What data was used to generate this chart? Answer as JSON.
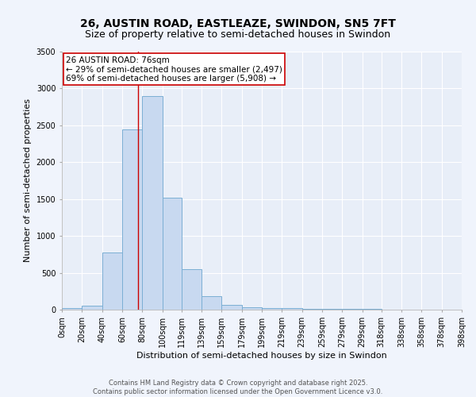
{
  "title": "26, AUSTIN ROAD, EASTLEAZE, SWINDON, SN5 7FT",
  "subtitle": "Size of property relative to semi-detached houses in Swindon",
  "xlabel": "Distribution of semi-detached houses by size in Swindon",
  "ylabel": "Number of semi-detached properties",
  "bar_color": "#c8d9f0",
  "bar_edge_color": "#7bafd4",
  "background_color": "#e8eef8",
  "grid_color": "#ffffff",
  "fig_background_color": "#f0f4fc",
  "bin_edges": [
    0,
    20,
    40,
    60,
    80,
    100,
    119,
    139,
    159,
    179,
    199,
    219,
    239,
    259,
    279,
    299,
    318,
    338,
    358,
    378,
    398
  ],
  "bin_labels": [
    "0sqm",
    "20sqm",
    "40sqm",
    "60sqm",
    "80sqm",
    "100sqm",
    "119sqm",
    "139sqm",
    "159sqm",
    "179sqm",
    "199sqm",
    "219sqm",
    "239sqm",
    "259sqm",
    "279sqm",
    "299sqm",
    "318sqm",
    "338sqm",
    "358sqm",
    "378sqm",
    "398sqm"
  ],
  "bar_heights": [
    20,
    50,
    780,
    2450,
    2900,
    1520,
    550,
    185,
    70,
    35,
    25,
    20,
    15,
    12,
    10,
    8,
    4,
    2,
    1,
    1
  ],
  "ylim": [
    0,
    3500
  ],
  "yticks": [
    0,
    500,
    1000,
    1500,
    2000,
    2500,
    3000,
    3500
  ],
  "property_size": 76,
  "property_line_color": "#cc0000",
  "annotation_text": "26 AUSTIN ROAD: 76sqm\n← 29% of semi-detached houses are smaller (2,497)\n69% of semi-detached houses are larger (5,908) →",
  "annotation_box_color": "#ffffff",
  "annotation_border_color": "#cc0000",
  "footer_line1": "Contains HM Land Registry data © Crown copyright and database right 2025.",
  "footer_line2": "Contains public sector information licensed under the Open Government Licence v3.0.",
  "title_fontsize": 10,
  "subtitle_fontsize": 9,
  "axis_label_fontsize": 8,
  "tick_fontsize": 7,
  "annotation_fontsize": 7.5,
  "footer_fontsize": 6
}
